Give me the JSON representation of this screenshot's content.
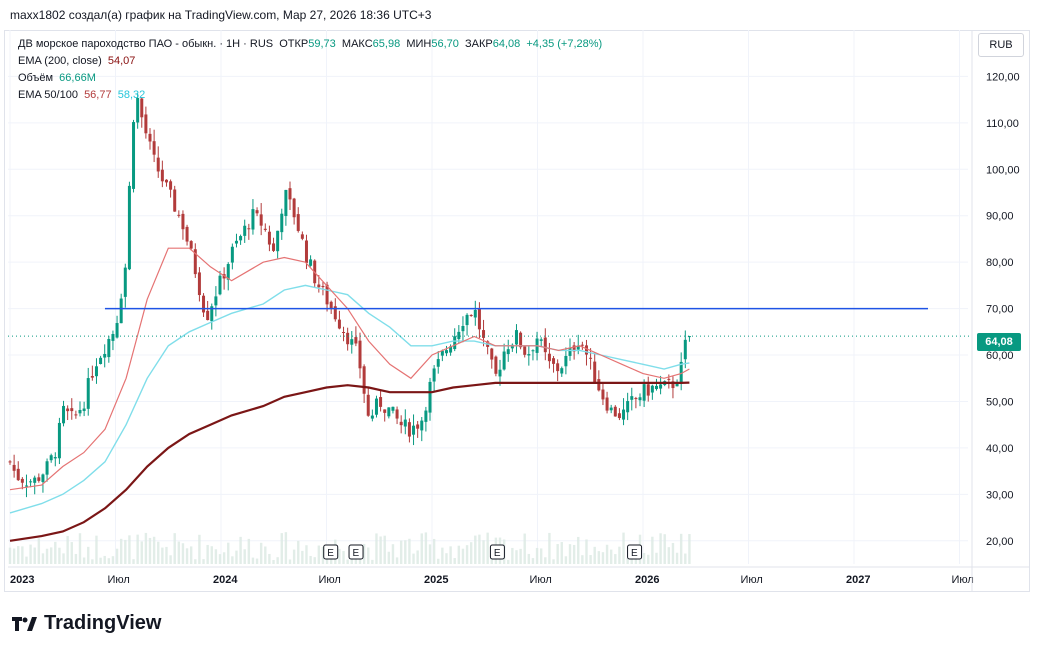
{
  "header": {
    "attribution": "maxx1802 создал(а) график на TradingView.com, Мар 27, 2026 18:36 UTC+3"
  },
  "legend": {
    "symbol": "ДВ морское пароходство ПАО - обыкн. · 1Н · RUS",
    "open_label": "ОТКР",
    "open": "59,73",
    "high_label": "МАКС",
    "high": "65,98",
    "low_label": "МИН",
    "low": "56,70",
    "close_label": "ЗАКР",
    "close": "64,08",
    "change": "+4,35 (+7,28%)",
    "ema200_label": "EMA (200, close)",
    "ema200_value": "54,07",
    "volume_label": "Объём",
    "volume_value": "66,66M",
    "ema50_100_label": "EMA 50/100",
    "ema50_value": "56,77",
    "ema100_value": "58,32"
  },
  "currency_button": "RUB",
  "last_price_tag": "64,08",
  "branding": {
    "name": "TradingView"
  },
  "colors": {
    "up": "#089981",
    "down": "#b23b3b",
    "ema50": "#e57373",
    "ema100": "#80deea",
    "ema200": "#7b1616",
    "hline": "#1e53e5",
    "grid": "#f0f3fa"
  },
  "chart_data": {
    "type": "candlestick",
    "title": "ДВ морское пароходство ПАО - обыкн.",
    "timeframe": "1Н",
    "ylim": [
      15,
      130
    ],
    "y_ticks": [
      20,
      30,
      40,
      50,
      60,
      70,
      80,
      90,
      100,
      110,
      120
    ],
    "y_tick_labels": [
      "20,00",
      "30,00",
      "40,00",
      "50,00",
      "60,00",
      "70,00",
      "80,00",
      "90,00",
      "100,00",
      "110,00",
      "120,00"
    ],
    "x_ticks": [
      {
        "t": 0.0,
        "label": "2023",
        "bold": true
      },
      {
        "t": 0.5,
        "label": "Июл",
        "bold": false
      },
      {
        "t": 1.0,
        "label": "2024",
        "bold": true
      },
      {
        "t": 1.5,
        "label": "Июл",
        "bold": false
      },
      {
        "t": 2.0,
        "label": "2025",
        "bold": true
      },
      {
        "t": 2.5,
        "label": "Июл",
        "bold": false
      },
      {
        "t": 3.0,
        "label": "2026",
        "bold": true
      },
      {
        "t": 3.5,
        "label": "Июл",
        "bold": false
      },
      {
        "t": 4.0,
        "label": "2027",
        "bold": true
      },
      {
        "t": 4.5,
        "label": "Июл",
        "bold": false
      }
    ],
    "horizontal_level": 70,
    "last_close": 64.08,
    "earnings_markers": [
      {
        "t": 1.52,
        "label": "E"
      },
      {
        "t": 1.64,
        "label": "E"
      },
      {
        "t": 2.31,
        "label": "E"
      },
      {
        "t": 2.96,
        "label": "E"
      }
    ],
    "close_path": [
      [
        0.0,
        37
      ],
      [
        0.03,
        34
      ],
      [
        0.08,
        33
      ],
      [
        0.12,
        33
      ],
      [
        0.18,
        36
      ],
      [
        0.22,
        40
      ],
      [
        0.25,
        48
      ],
      [
        0.3,
        46
      ],
      [
        0.35,
        50
      ],
      [
        0.4,
        58
      ],
      [
        0.45,
        62
      ],
      [
        0.5,
        66
      ],
      [
        0.55,
        80
      ],
      [
        0.58,
        110
      ],
      [
        0.6,
        116
      ],
      [
        0.63,
        110
      ],
      [
        0.68,
        102
      ],
      [
        0.72,
        98
      ],
      [
        0.78,
        92
      ],
      [
        0.82,
        88
      ],
      [
        0.88,
        78
      ],
      [
        0.93,
        68
      ],
      [
        0.97,
        73
      ],
      [
        1.0,
        76
      ],
      [
        1.05,
        82
      ],
      [
        1.1,
        86
      ],
      [
        1.15,
        90
      ],
      [
        1.2,
        88
      ],
      [
        1.25,
        82
      ],
      [
        1.3,
        95
      ],
      [
        1.35,
        90
      ],
      [
        1.4,
        82
      ],
      [
        1.45,
        76
      ],
      [
        1.5,
        72
      ],
      [
        1.55,
        68
      ],
      [
        1.6,
        64
      ],
      [
        1.65,
        60
      ],
      [
        1.7,
        46
      ],
      [
        1.75,
        50
      ],
      [
        1.8,
        48
      ],
      [
        1.85,
        45
      ],
      [
        1.9,
        44
      ],
      [
        1.95,
        46
      ],
      [
        2.0,
        55
      ],
      [
        2.05,
        60
      ],
      [
        2.1,
        64
      ],
      [
        2.15,
        68
      ],
      [
        2.2,
        70
      ],
      [
        2.25,
        62
      ],
      [
        2.3,
        55
      ],
      [
        2.35,
        62
      ],
      [
        2.4,
        64
      ],
      [
        2.45,
        60
      ],
      [
        2.5,
        64
      ],
      [
        2.55,
        58
      ],
      [
        2.6,
        57
      ],
      [
        2.65,
        60
      ],
      [
        2.7,
        64
      ],
      [
        2.75,
        58
      ],
      [
        2.8,
        52
      ],
      [
        2.85,
        48
      ],
      [
        2.9,
        47
      ],
      [
        2.95,
        50
      ],
      [
        3.0,
        52
      ],
      [
        3.05,
        53
      ],
      [
        3.1,
        53
      ],
      [
        3.15,
        54
      ],
      [
        3.18,
        57
      ],
      [
        3.2,
        62
      ],
      [
        3.22,
        64.08
      ]
    ],
    "ema50": [
      [
        0.0,
        31
      ],
      [
        0.15,
        32
      ],
      [
        0.25,
        36
      ],
      [
        0.35,
        39
      ],
      [
        0.45,
        44
      ],
      [
        0.55,
        55
      ],
      [
        0.65,
        72
      ],
      [
        0.75,
        83
      ],
      [
        0.85,
        83
      ],
      [
        0.95,
        79
      ],
      [
        1.05,
        76
      ],
      [
        1.2,
        80
      ],
      [
        1.3,
        81
      ],
      [
        1.4,
        80
      ],
      [
        1.5,
        75
      ],
      [
        1.6,
        70
      ],
      [
        1.7,
        63
      ],
      [
        1.8,
        58
      ],
      [
        1.9,
        55
      ],
      [
        2.0,
        60
      ],
      [
        2.1,
        62
      ],
      [
        2.2,
        64
      ],
      [
        2.3,
        62
      ],
      [
        2.4,
        62
      ],
      [
        2.5,
        62
      ],
      [
        2.6,
        61
      ],
      [
        2.7,
        62
      ],
      [
        2.8,
        60
      ],
      [
        2.9,
        58
      ],
      [
        3.0,
        56
      ],
      [
        3.1,
        55
      ],
      [
        3.18,
        56
      ],
      [
        3.22,
        57
      ]
    ],
    "ema100": [
      [
        0.0,
        26
      ],
      [
        0.15,
        28
      ],
      [
        0.25,
        30
      ],
      [
        0.35,
        33
      ],
      [
        0.45,
        37
      ],
      [
        0.55,
        45
      ],
      [
        0.65,
        55
      ],
      [
        0.75,
        62
      ],
      [
        0.85,
        65
      ],
      [
        0.95,
        67
      ],
      [
        1.05,
        69
      ],
      [
        1.2,
        71
      ],
      [
        1.3,
        74
      ],
      [
        1.4,
        75
      ],
      [
        1.5,
        74
      ],
      [
        1.6,
        73
      ],
      [
        1.7,
        69
      ],
      [
        1.8,
        66
      ],
      [
        1.9,
        62
      ],
      [
        2.0,
        62
      ],
      [
        2.1,
        63
      ],
      [
        2.2,
        63
      ],
      [
        2.3,
        62
      ],
      [
        2.4,
        62
      ],
      [
        2.5,
        62
      ],
      [
        2.6,
        61
      ],
      [
        2.7,
        61
      ],
      [
        2.8,
        60
      ],
      [
        2.9,
        59
      ],
      [
        3.0,
        58
      ],
      [
        3.1,
        57
      ],
      [
        3.18,
        58
      ],
      [
        3.22,
        58.3
      ]
    ],
    "ema200": [
      [
        0.0,
        20
      ],
      [
        0.15,
        21
      ],
      [
        0.25,
        22
      ],
      [
        0.35,
        24
      ],
      [
        0.45,
        27
      ],
      [
        0.55,
        31
      ],
      [
        0.65,
        36
      ],
      [
        0.75,
        40
      ],
      [
        0.85,
        43
      ],
      [
        0.95,
        45
      ],
      [
        1.05,
        47
      ],
      [
        1.2,
        49
      ],
      [
        1.3,
        51
      ],
      [
        1.4,
        52
      ],
      [
        1.5,
        53
      ],
      [
        1.6,
        53.5
      ],
      [
        1.7,
        53
      ],
      [
        1.8,
        52
      ],
      [
        1.9,
        52
      ],
      [
        2.0,
        52
      ],
      [
        2.1,
        53
      ],
      [
        2.2,
        53.5
      ],
      [
        2.3,
        54
      ],
      [
        2.4,
        54
      ],
      [
        2.5,
        54
      ],
      [
        2.6,
        54
      ],
      [
        2.7,
        54
      ],
      [
        2.8,
        54
      ],
      [
        2.9,
        54
      ],
      [
        3.0,
        54
      ],
      [
        3.1,
        54
      ],
      [
        3.18,
        54
      ],
      [
        3.22,
        54.07
      ]
    ]
  }
}
